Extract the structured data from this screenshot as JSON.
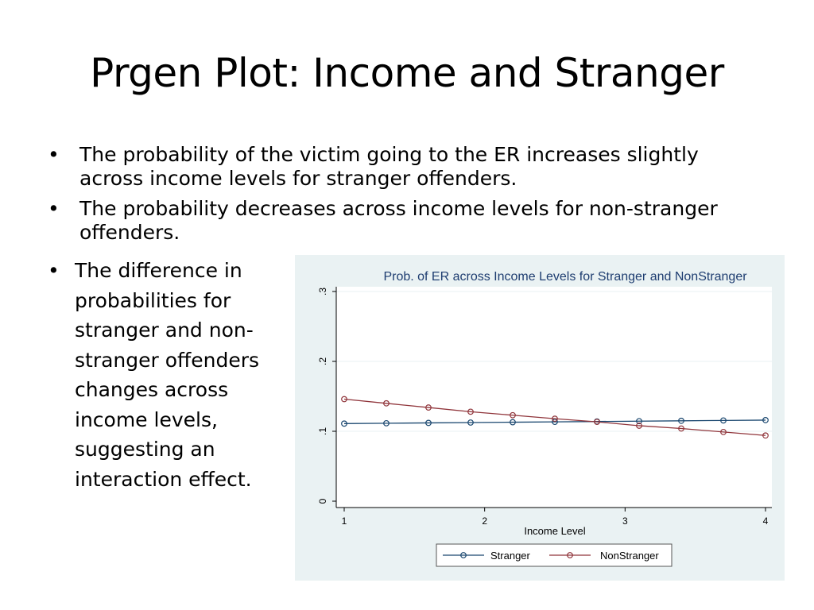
{
  "slide": {
    "title": "Prgen Plot: Income and Stranger",
    "bullets": [
      "The probability of the victim going to the ER increases slightly across income levels for stranger offenders.",
      "The probability decreases across income levels for non-stranger offenders."
    ],
    "side_bullet": "The difference in probabilities for stranger and non-stranger offenders changes across income levels, suggesting an interaction effect."
  },
  "chart_data": {
    "type": "line",
    "title": "Prob. of ER across Income Levels for Stranger and NonStranger",
    "xlabel": "Income Level",
    "ylabel": "",
    "xlim": [
      1,
      4
    ],
    "ylim": [
      0,
      0.3
    ],
    "x_ticks": [
      1,
      2,
      3,
      4
    ],
    "x_tick_labels": [
      "1",
      "2",
      "3",
      "4"
    ],
    "y_ticks": [
      0,
      0.1,
      0.2,
      0.3
    ],
    "y_tick_labels": [
      "0",
      ".1",
      ".2",
      ".3"
    ],
    "grid": true,
    "legend_position": "bottom",
    "x": [
      1,
      1.3,
      1.6,
      1.9,
      2.2,
      2.5,
      2.8,
      3.1,
      3.4,
      3.7,
      4
    ],
    "series": [
      {
        "name": "Stranger",
        "color": "#1a476f",
        "values": [
          0.111,
          0.1115,
          0.112,
          0.1125,
          0.113,
          0.1135,
          0.114,
          0.1145,
          0.115,
          0.1155,
          0.116
        ]
      },
      {
        "name": "NonStranger",
        "color": "#90353b",
        "values": [
          0.146,
          0.14,
          0.134,
          0.128,
          0.123,
          0.118,
          0.1135,
          0.108,
          0.104,
          0.099,
          0.094
        ]
      }
    ],
    "colors": {
      "outer_bg": "#eaf2f3",
      "plot_bg": "#ffffff",
      "title": "#1e3d70",
      "grid": "#eaf2f3"
    }
  }
}
